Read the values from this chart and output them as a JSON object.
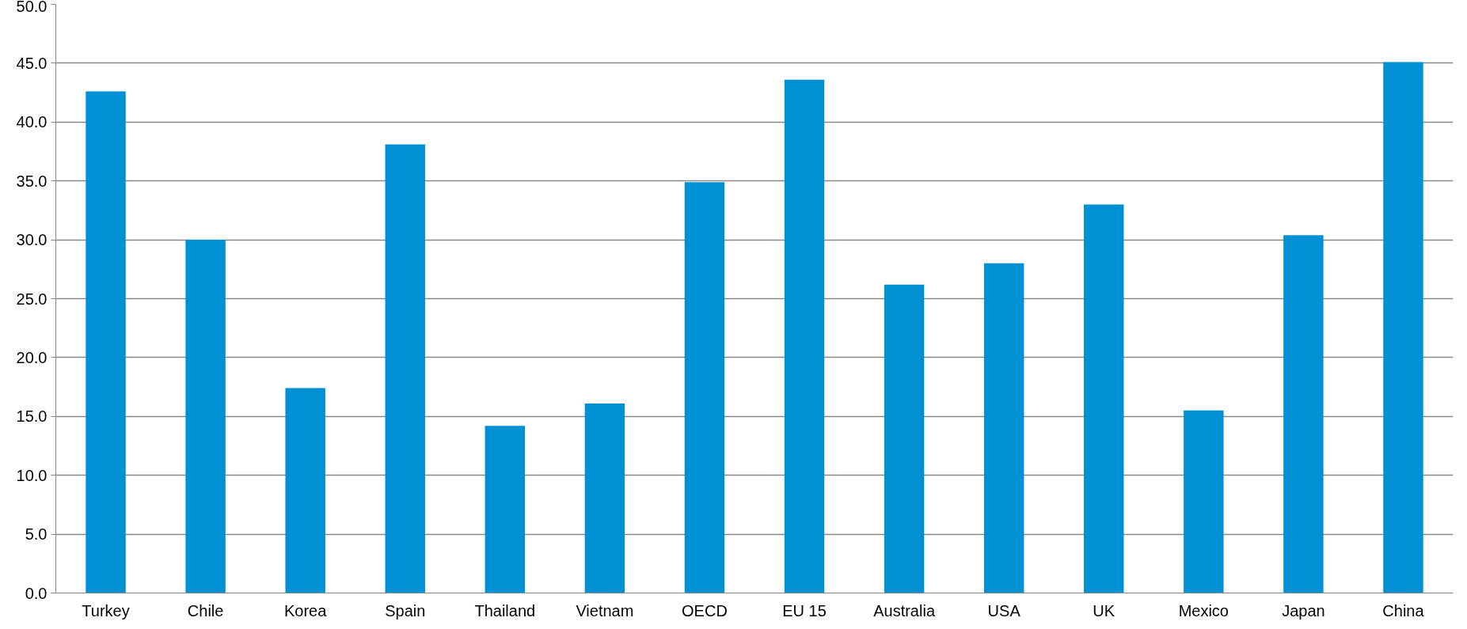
{
  "chart_data": {
    "type": "bar",
    "categories": [
      "Turkey",
      "Chile",
      "Korea",
      "Spain",
      "Thailand",
      "Vietnam",
      "OECD",
      "EU 15",
      "Australia",
      "USA",
      "UK",
      "Mexico",
      "Japan",
      "China"
    ],
    "values": [
      42.6,
      30.0,
      17.4,
      38.1,
      14.2,
      16.1,
      34.9,
      43.6,
      26.2,
      28.0,
      33.0,
      15.5,
      30.4,
      45.1
    ],
    "color": "#0090d4",
    "ylim": [
      0,
      50
    ],
    "yticks": [
      {
        "value": 0,
        "label": "0.0"
      },
      {
        "value": 5,
        "label": "5.0"
      },
      {
        "value": 10,
        "label": "10.0"
      },
      {
        "value": 15,
        "label": "15.0"
      },
      {
        "value": 20,
        "label": "20.0"
      },
      {
        "value": 25,
        "label": "25.0"
      },
      {
        "value": 30,
        "label": "30.0"
      },
      {
        "value": 35,
        "label": "35.0"
      },
      {
        "value": 40,
        "label": "40.0"
      },
      {
        "value": 45,
        "label": "45.0"
      },
      {
        "value": 50,
        "label": "50.0"
      }
    ],
    "grid": "y"
  }
}
